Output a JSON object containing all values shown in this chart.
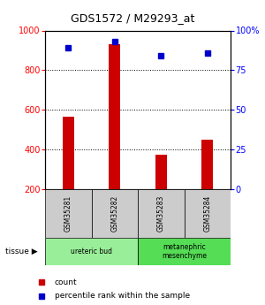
{
  "title": "GDS1572 / M29293_at",
  "samples": [
    "GSM35281",
    "GSM35282",
    "GSM35283",
    "GSM35284"
  ],
  "counts": [
    565,
    930,
    375,
    450
  ],
  "percentiles": [
    89,
    93,
    84,
    86
  ],
  "y_min": 200,
  "y_max": 1000,
  "y_ticks_left": [
    200,
    400,
    600,
    800,
    1000
  ],
  "y_ticks_right_vals": [
    0,
    25,
    50,
    75,
    100
  ],
  "bar_color": "#cc0000",
  "dot_color": "#0000cc",
  "tissue_groups": [
    {
      "label": "ureteric bud",
      "samples": [
        0,
        1
      ],
      "color": "#99ee99"
    },
    {
      "label": "metanephric\nmesenchyme",
      "samples": [
        2,
        3
      ],
      "color": "#55dd55"
    }
  ],
  "label_count": "count",
  "label_percentile": "percentile rank within the sample",
  "sample_box_color": "#cccccc",
  "bar_width": 0.25
}
